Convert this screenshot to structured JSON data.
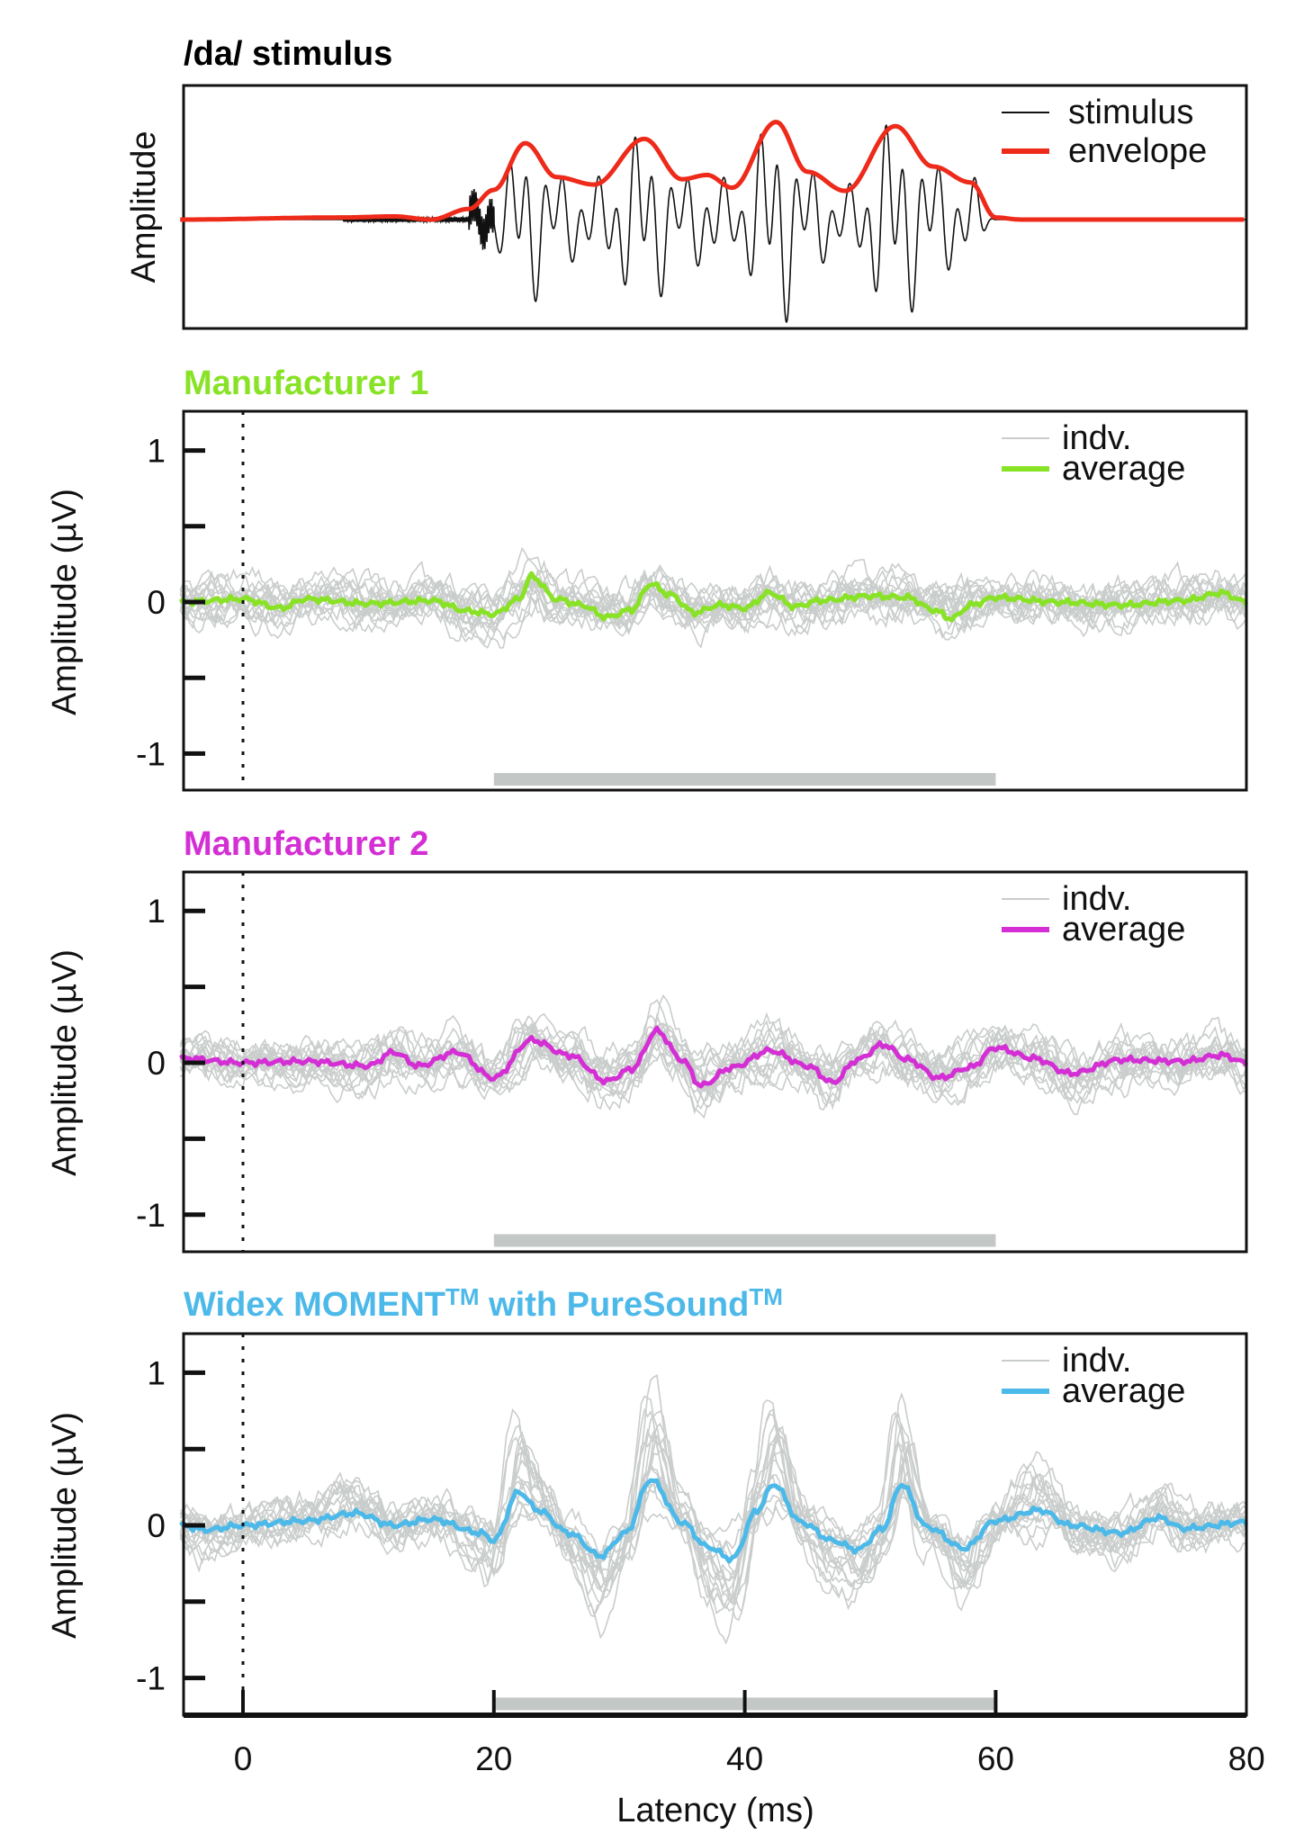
{
  "colors": {
    "stimulus": "#111111",
    "envelope": "#ee2a1a",
    "individual": "#c9cdcb",
    "analysis_window": "#c3c7c5",
    "manufacturer1": "#88e225",
    "manufacturer2": "#d42fd4",
    "widex": "#4cb9e9"
  },
  "chart_data": [
    {
      "type": "line",
      "title": "/da/ stimulus",
      "ylabel": "Amplitude",
      "xlim": [
        -5,
        80
      ],
      "grid": false,
      "legend": {
        "placement": "top-right",
        "entries": [
          "stimulus",
          "envelope"
        ]
      },
      "stimulus_span_ms": [
        18,
        60
      ],
      "envelope": {
        "x": [
          -5,
          8,
          12,
          15,
          18,
          20,
          22.5,
          25,
          28,
          32,
          35,
          37,
          39,
          42.5,
          45,
          48,
          52,
          55,
          58,
          60,
          62,
          80
        ],
        "y": [
          0,
          0.02,
          0.03,
          0,
          0.1,
          0.28,
          0.72,
          0.4,
          0.33,
          0.76,
          0.38,
          0.42,
          0.3,
          0.92,
          0.45,
          0.27,
          0.88,
          0.5,
          0.35,
          0.02,
          0,
          0
        ]
      }
    },
    {
      "type": "line",
      "title": "Manufacturer 1",
      "title_color": "#88e225",
      "ylabel": "Amplitude (µV)",
      "xlim": [
        -5,
        80
      ],
      "ylim": [
        -1.25,
        1.25
      ],
      "yticks": [
        1,
        0.5,
        0,
        -0.5,
        -1
      ],
      "ytick_labels": [
        "1",
        "",
        "0",
        "",
        "-1"
      ],
      "grid": false,
      "legend": {
        "placement": "top-right",
        "entries": [
          "indv.",
          "average"
        ]
      },
      "analysis_window_ms": [
        20,
        60
      ],
      "stimulus_onset_ms": 0,
      "average": {
        "x": [
          -5,
          0,
          3,
          5,
          10,
          15,
          18,
          20,
          22,
          23,
          25,
          27,
          29,
          31,
          32.5,
          34,
          36,
          38,
          40,
          42,
          44,
          46,
          50,
          53,
          55,
          56.5,
          58,
          60,
          65,
          70,
          75,
          78,
          80
        ],
        "y": [
          0,
          0.02,
          -0.04,
          0.02,
          -0.01,
          0.01,
          -0.06,
          -0.08,
          0.02,
          0.17,
          0.02,
          -0.02,
          -0.1,
          -0.05,
          0.12,
          0.05,
          -0.07,
          -0.02,
          -0.04,
          0.06,
          -0.03,
          0.01,
          0.04,
          0.03,
          -0.05,
          -0.11,
          -0.02,
          0.03,
          0.0,
          -0.02,
          0.01,
          0.06,
          0
        ]
      }
    },
    {
      "type": "line",
      "title": "Manufacturer 2",
      "title_color": "#d42fd4",
      "ylabel": "Amplitude (µV)",
      "xlim": [
        -5,
        80
      ],
      "ylim": [
        -1.25,
        1.25
      ],
      "yticks": [
        1,
        0.5,
        0,
        -0.5,
        -1
      ],
      "ytick_labels": [
        "1",
        "",
        "0",
        "",
        "-1"
      ],
      "grid": false,
      "legend": {
        "placement": "top-right",
        "entries": [
          "indv.",
          "average"
        ]
      },
      "analysis_window_ms": [
        20,
        60
      ],
      "stimulus_onset_ms": 0,
      "average": {
        "x": [
          -5,
          0,
          5,
          10,
          12,
          14,
          17,
          20,
          23,
          26,
          29,
          31,
          33,
          35,
          36.5,
          39,
          42,
          45,
          47,
          49,
          51,
          53,
          55.5,
          58,
          60,
          63,
          66,
          70,
          75,
          78,
          80
        ],
        "y": [
          0.03,
          0,
          0.01,
          -0.02,
          0.07,
          -0.02,
          0.07,
          -0.1,
          0.15,
          0.05,
          -0.12,
          -0.04,
          0.21,
          0.02,
          -0.15,
          -0.03,
          0.08,
          -0.02,
          -0.13,
          0.02,
          0.12,
          0.02,
          -0.1,
          -0.03,
          0.1,
          0.03,
          -0.07,
          0.02,
          0.01,
          0.05,
          0
        ]
      }
    },
    {
      "type": "line",
      "title": "Widex MOMENT",
      "title_sup": "TM",
      "title_mid": " with PureSound",
      "title_sup2": "TM",
      "title_color": "#4cb9e9",
      "ylabel": "Amplitude (µV)",
      "xlabel": "Latency (ms)",
      "xlim": [
        -5,
        80
      ],
      "ylim": [
        -1.25,
        1.25
      ],
      "xticks": [
        0,
        20,
        40,
        60,
        80
      ],
      "xtick_labels": [
        "0",
        "20",
        "40",
        "60",
        "80"
      ],
      "yticks": [
        1,
        0.5,
        0,
        -0.5,
        -1
      ],
      "ytick_labels": [
        "1",
        "",
        "0",
        "",
        "-1"
      ],
      "grid": false,
      "legend": {
        "placement": "top-right",
        "entries": [
          "indv.",
          "average"
        ]
      },
      "analysis_window_ms": [
        20,
        60
      ],
      "stimulus_onset_ms": 0,
      "average": {
        "x": [
          -5,
          -3,
          0,
          5,
          9,
          12,
          15,
          19,
          20,
          22,
          23.5,
          26,
          28.5,
          30.5,
          32.5,
          35,
          37,
          39,
          41,
          42.3,
          44.5,
          47,
          49,
          51,
          52.5,
          54.5,
          57.5,
          60,
          63.5,
          66,
          70,
          73,
          75,
          80
        ],
        "y": [
          0,
          -0.03,
          0,
          0.03,
          0.08,
          0.0,
          0.04,
          -0.05,
          -0.1,
          0.22,
          0.1,
          -0.05,
          -0.2,
          -0.05,
          0.3,
          0.02,
          -0.14,
          -0.22,
          0.1,
          0.27,
          0.02,
          -0.1,
          -0.16,
          -0.02,
          0.27,
          -0.01,
          -0.15,
          0.03,
          0.1,
          0.0,
          -0.05,
          0.05,
          -0.02,
          0.02
        ]
      }
    }
  ]
}
